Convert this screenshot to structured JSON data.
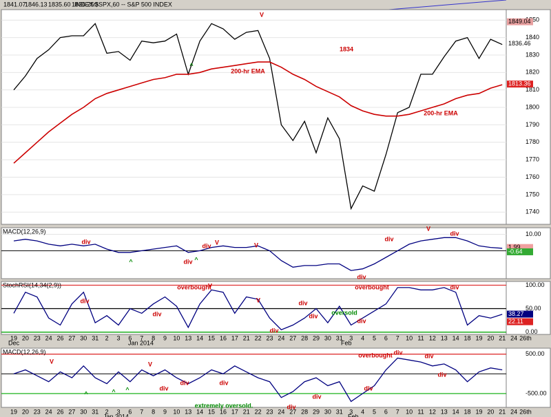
{
  "chart_data": [
    {
      "type": "line",
      "title": "INDEX:$SPX,60 -- S&P 500 INDEX",
      "header_values": [
        "1841.07",
        "1846.13",
        "1835.60",
        "1836.25",
        "0"
      ],
      "series": [
        {
          "color": "#000000",
          "values": [
            1810,
            1818,
            1828,
            1833,
            1840,
            1841,
            1841,
            1848,
            1831,
            1832,
            1827,
            1838,
            1837,
            1838,
            1842,
            1819,
            1838,
            1848,
            1845,
            1839,
            1843,
            1844,
            1828,
            1790,
            1781,
            1792,
            1774,
            1794,
            1782,
            1742,
            1755,
            1752,
            1773,
            1797,
            1800,
            1819,
            1819,
            1829,
            1838,
            1840,
            1828,
            1839,
            1836,
            null,
            null
          ]
        },
        {
          "color": "#cc0000",
          "values": [
            1768,
            1774,
            1780,
            1786,
            1791,
            1796,
            1800,
            1805,
            1808,
            1810,
            1812,
            1814,
            1816,
            1817,
            1819,
            1819,
            1820,
            1822,
            1823,
            1824,
            1825,
            1826,
            1826,
            1823,
            1819,
            1816,
            1812,
            1809,
            1806,
            1801,
            1798,
            1796,
            1795,
            1795,
            1796,
            1798,
            1800,
            1802,
            1805,
            1807,
            1808,
            1811,
            1813,
            null,
            null
          ]
        }
      ],
      "ylim": [
        1733,
        1856
      ],
      "yticks": [
        1740,
        1750,
        1760,
        1770,
        1780,
        1790,
        1800,
        1810,
        1820,
        1830,
        1840,
        1850
      ],
      "tags": [
        {
          "value": 1849.04,
          "color": "#e8a0a0"
        },
        {
          "value": 1836.46,
          "color": "#ffffff"
        },
        {
          "value": 1813.36,
          "color": "#dd2222"
        }
      ],
      "annotations": [
        "V",
        "1834",
        "200-hr EMA",
        "200-hr EMA",
        "^"
      ]
    },
    {
      "type": "line",
      "title": "MACD(12,26,9)",
      "series": [
        {
          "color": "#000080",
          "values": [
            6,
            7,
            6,
            4,
            3,
            4,
            3,
            4,
            1,
            -1,
            -1,
            0,
            1,
            2,
            3,
            -1,
            0,
            2,
            3,
            2,
            2,
            3,
            0,
            -6,
            -10,
            -9,
            -9,
            -8,
            -8,
            -12,
            -11,
            -8,
            -4,
            0,
            4,
            6,
            7,
            8,
            8,
            6,
            3,
            2,
            1.5,
            null,
            null
          ]
        }
      ],
      "ylim": [
        -17,
        14
      ],
      "yticks": [
        {
          "value": 10,
          "label": "10.00"
        }
      ],
      "tags": [
        {
          "value": 1.99,
          "color": "#f0a0a0"
        },
        {
          "value": -0.64,
          "color": "#33aa33"
        }
      ],
      "annotations": [
        "div",
        "V",
        "div",
        "V",
        "^",
        "^",
        "div",
        "V",
        "div",
        "div",
        "div"
      ]
    },
    {
      "type": "line",
      "title": "StochRSI(14,34(2,9))",
      "categories": [
        "19",
        "20",
        "23",
        "24",
        "26",
        "27",
        "30",
        "31",
        "2",
        "3",
        "6",
        "7",
        "8",
        "9",
        "10",
        "13",
        "14",
        "15",
        "16",
        "17",
        "21",
        "22",
        "23",
        "24",
        "27",
        "28",
        "29",
        "30",
        "31",
        "3",
        "4",
        "5",
        "6",
        "7",
        "10",
        "11",
        "12",
        "13",
        "14",
        "18",
        "19",
        "20",
        "21",
        "24",
        "26th"
      ],
      "x_groups": [
        "Dec",
        "Jan 2014",
        "Feb"
      ],
      "series": [
        {
          "color": "#000080",
          "values": [
            40,
            85,
            75,
            30,
            15,
            60,
            85,
            20,
            35,
            15,
            50,
            40,
            60,
            75,
            55,
            10,
            60,
            90,
            85,
            40,
            75,
            70,
            30,
            5,
            15,
            30,
            50,
            20,
            55,
            15,
            30,
            45,
            60,
            95,
            95,
            90,
            90,
            95,
            85,
            15,
            35,
            30,
            38,
            null,
            null
          ]
        }
      ],
      "ylim": [
        -5,
        108
      ],
      "yticks": [
        {
          "value": 100,
          "label": "100.00"
        },
        {
          "value": 50,
          "label": "50.00"
        },
        {
          "value": 0,
          "label": "0.00"
        }
      ],
      "tags": [
        {
          "value": 38.27,
          "color": "#000080"
        },
        {
          "value": 22.11,
          "color": "#dd2222"
        }
      ],
      "annotations": [
        "overbought",
        "V",
        "div",
        "overbought",
        "div",
        "V",
        "div",
        "div",
        "oversold",
        "div",
        "div",
        "div"
      ]
    },
    {
      "type": "line",
      "title": "MACD(12,26,9)",
      "categories": [
        "19",
        "20",
        "23",
        "24",
        "26",
        "27",
        "30",
        "31",
        "2",
        "3",
        "6",
        "7",
        "8",
        "9",
        "10",
        "13",
        "14",
        "15",
        "16",
        "17",
        "21",
        "22",
        "23",
        "24",
        "27",
        "28",
        "29",
        "30",
        "31",
        "3",
        "4",
        "5",
        "6",
        "7",
        "10",
        "11",
        "12",
        "13",
        "14",
        "18",
        "19",
        "20",
        "21",
        "24",
        "26th"
      ],
      "x_groups": [
        "Jan 2014",
        "Feb"
      ],
      "series": [
        {
          "color": "#000080",
          "values": [
            0,
            100,
            -50,
            -200,
            50,
            -100,
            200,
            -100,
            -250,
            50,
            -200,
            100,
            -50,
            100,
            -100,
            -250,
            -100,
            100,
            0,
            200,
            50,
            -100,
            -200,
            -600,
            -450,
            -200,
            -100,
            -300,
            -200,
            -700,
            -500,
            -300,
            100,
            400,
            350,
            300,
            200,
            250,
            100,
            -200,
            50,
            150,
            100,
            null,
            null
          ]
        }
      ],
      "ylim": [
        -850,
        650
      ],
      "yticks": [
        {
          "value": 500,
          "label": "500.00"
        },
        {
          "value": -500,
          "label": "-500.00"
        }
      ],
      "annotations": [
        "overbought",
        "div",
        "div",
        "V",
        "V",
        "^",
        "^",
        "^",
        "div",
        "div",
        "div",
        "extremely oversold.",
        "div",
        "div",
        "div",
        "div"
      ]
    }
  ]
}
